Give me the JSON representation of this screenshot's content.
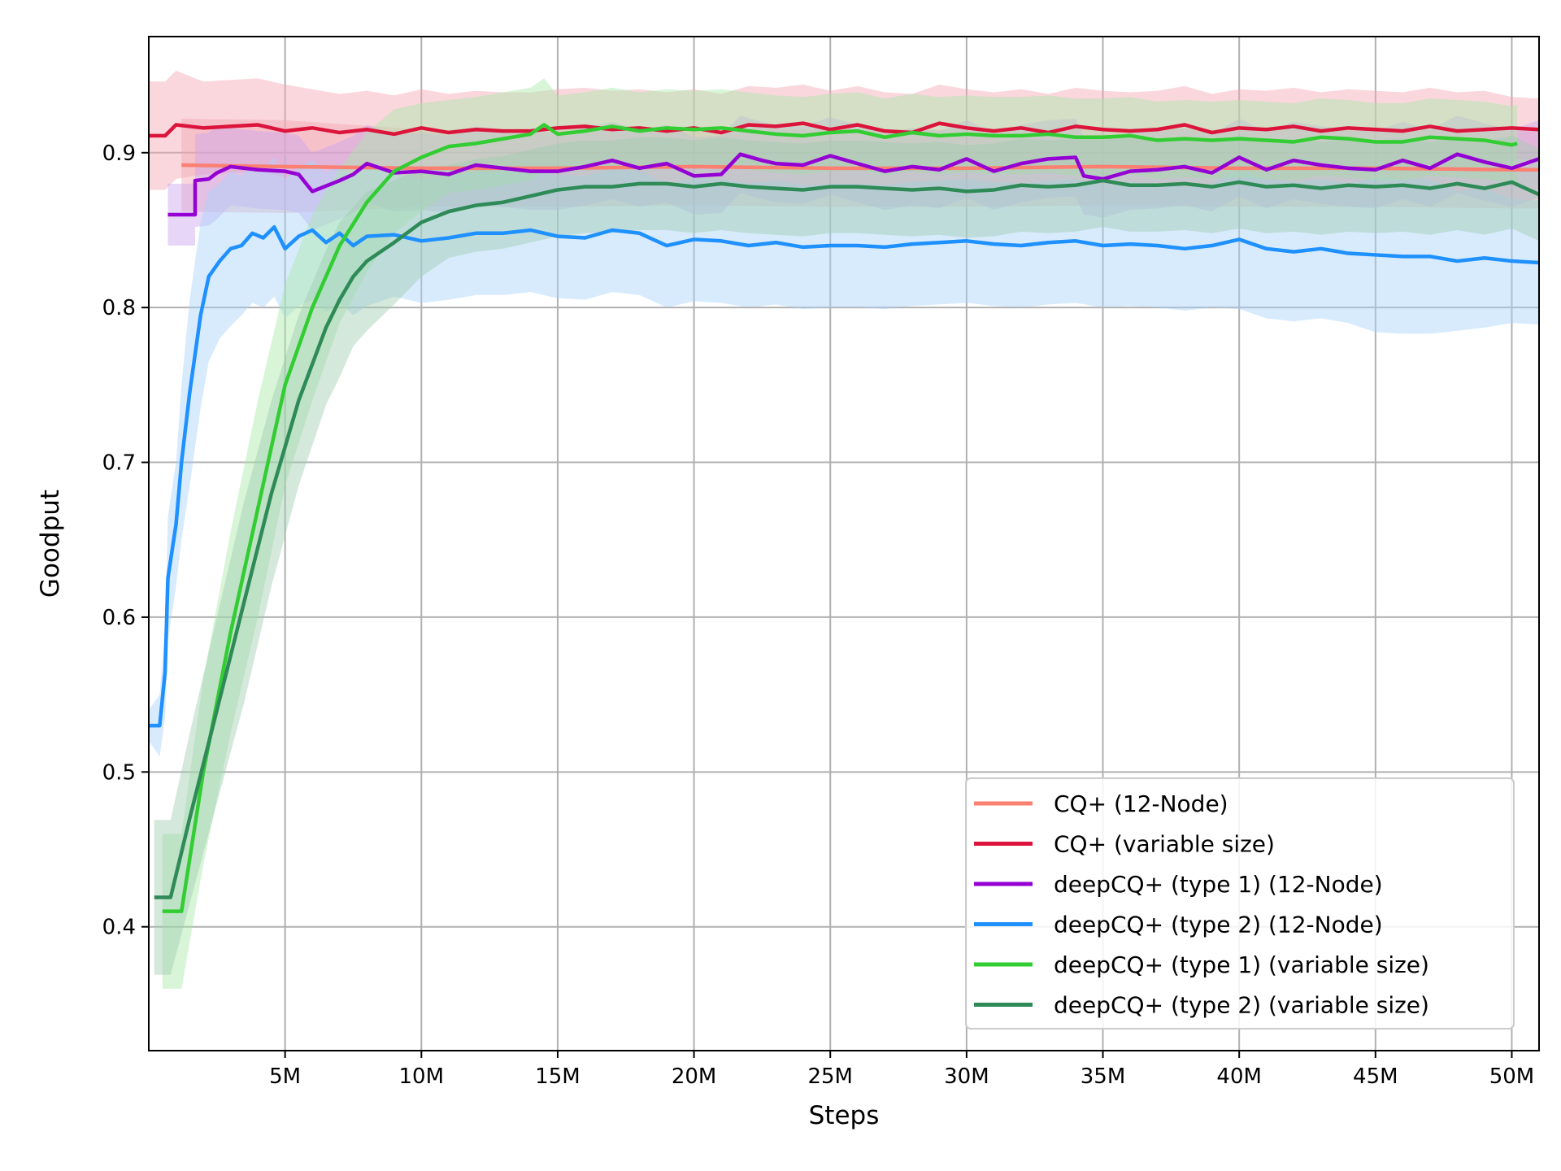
{
  "chart_data": {
    "type": "line",
    "xlabel": "Steps",
    "ylabel": "Goodput",
    "xlim": [
      0,
      51000000
    ],
    "ylim": [
      0.32,
      0.975
    ],
    "x_ticks": [
      5000000,
      10000000,
      15000000,
      20000000,
      25000000,
      30000000,
      35000000,
      40000000,
      45000000,
      50000000
    ],
    "x_tick_labels": [
      "5M",
      "10M",
      "15M",
      "20M",
      "25M",
      "30M",
      "35M",
      "40M",
      "45M",
      "50M"
    ],
    "y_ticks": [
      0.4,
      0.5,
      0.6,
      0.7,
      0.8,
      0.9
    ],
    "y_tick_labels": [
      "0.4",
      "0.5",
      "0.6",
      "0.7",
      "0.8",
      "0.9"
    ],
    "grid": true,
    "legend_position": "lower right",
    "series": [
      {
        "name": "CQ+ (12-Node)",
        "color": "#fa8072",
        "band_color": "#f4a6b4",
        "x": [
          1200000,
          5000000,
          10000000,
          15000000,
          20000000,
          25000000,
          30000000,
          35000000,
          40000000,
          45000000,
          50000000,
          51000000
        ],
        "y": [
          0.892,
          0.891,
          0.89,
          0.89,
          0.891,
          0.89,
          0.89,
          0.891,
          0.89,
          0.89,
          0.889,
          0.889
        ],
        "band": [
          0.03,
          0.03,
          0.025,
          0.025,
          0.025,
          0.025,
          0.025,
          0.025,
          0.025,
          0.025,
          0.025,
          0.025
        ]
      },
      {
        "name": "CQ+ (variable size)",
        "color": "#dc143c",
        "band_color": "#f4a6b4",
        "x": [
          0,
          600000,
          1000000,
          2000000,
          3000000,
          4000000,
          5000000,
          6000000,
          7000000,
          8000000,
          9000000,
          10000000,
          11000000,
          12000000,
          13000000,
          14000000,
          15000000,
          16000000,
          17000000,
          18000000,
          19000000,
          20000000,
          21000000,
          22000000,
          23000000,
          24000000,
          25000000,
          26000000,
          27000000,
          28000000,
          29000000,
          30000000,
          31000000,
          32000000,
          33000000,
          34000000,
          35000000,
          36000000,
          37000000,
          38000000,
          39000000,
          40000000,
          41000000,
          42000000,
          43000000,
          44000000,
          45000000,
          46000000,
          47000000,
          48000000,
          49000000,
          50000000,
          51000000
        ],
        "y": [
          0.911,
          0.911,
          0.918,
          0.916,
          0.917,
          0.918,
          0.914,
          0.916,
          0.913,
          0.915,
          0.912,
          0.916,
          0.913,
          0.915,
          0.914,
          0.914,
          0.916,
          0.917,
          0.915,
          0.916,
          0.914,
          0.916,
          0.913,
          0.918,
          0.917,
          0.919,
          0.915,
          0.918,
          0.914,
          0.913,
          0.919,
          0.916,
          0.914,
          0.916,
          0.913,
          0.917,
          0.915,
          0.914,
          0.915,
          0.918,
          0.913,
          0.916,
          0.915,
          0.917,
          0.914,
          0.916,
          0.915,
          0.914,
          0.917,
          0.914,
          0.915,
          0.916,
          0.915
        ],
        "band": [
          0.035,
          0.035,
          0.035,
          0.03,
          0.03,
          0.03,
          0.03,
          0.025,
          0.025,
          0.025,
          0.025,
          0.025,
          0.025,
          0.025,
          0.025,
          0.025,
          0.025,
          0.025,
          0.025,
          0.025,
          0.025,
          0.025,
          0.025,
          0.025,
          0.025,
          0.025,
          0.025,
          0.025,
          0.025,
          0.025,
          0.025,
          0.025,
          0.025,
          0.025,
          0.025,
          0.025,
          0.025,
          0.025,
          0.025,
          0.025,
          0.025,
          0.025,
          0.025,
          0.025,
          0.025,
          0.025,
          0.025,
          0.025,
          0.025,
          0.025,
          0.025,
          0.02,
          0.02
        ]
      },
      {
        "name": "deepCQ+ (type 1) (12-Node)",
        "color": "#9400d3",
        "band_color": "#c9a3ee",
        "x": [
          700000,
          1700000,
          1700000,
          2200000,
          2500000,
          3000000,
          4000000,
          5000000,
          5500000,
          6000000,
          7000000,
          7500000,
          8000000,
          9000000,
          10000000,
          11000000,
          12000000,
          13000000,
          14000000,
          15000000,
          16000000,
          17000000,
          18000000,
          19000000,
          20000000,
          21000000,
          21700000,
          22500000,
          23000000,
          24000000,
          25000000,
          26000000,
          27000000,
          28000000,
          29000000,
          30000000,
          31000000,
          32000000,
          33000000,
          34000000,
          34300000,
          35000000,
          36000000,
          37000000,
          38000000,
          39000000,
          40000000,
          41000000,
          42000000,
          43000000,
          44000000,
          45000000,
          46000000,
          47000000,
          48000000,
          49000000,
          50000000,
          51000000
        ],
        "y": [
          0.86,
          0.86,
          0.882,
          0.883,
          0.887,
          0.891,
          0.889,
          0.888,
          0.886,
          0.875,
          0.882,
          0.886,
          0.893,
          0.887,
          0.888,
          0.886,
          0.892,
          0.89,
          0.888,
          0.888,
          0.891,
          0.895,
          0.89,
          0.893,
          0.885,
          0.886,
          0.899,
          0.895,
          0.893,
          0.892,
          0.898,
          0.893,
          0.888,
          0.891,
          0.889,
          0.896,
          0.888,
          0.893,
          0.896,
          0.897,
          0.885,
          0.883,
          0.888,
          0.889,
          0.891,
          0.887,
          0.897,
          0.889,
          0.895,
          0.892,
          0.89,
          0.889,
          0.895,
          0.89,
          0.899,
          0.894,
          0.89,
          0.896
        ],
        "band": [
          0.02,
          0.02,
          0.03,
          0.03,
          0.03,
          0.025,
          0.025,
          0.025,
          0.025,
          0.025,
          0.025,
          0.025,
          0.025,
          0.025,
          0.025,
          0.025,
          0.025,
          0.025,
          0.025,
          0.025,
          0.025,
          0.025,
          0.025,
          0.025,
          0.025,
          0.025,
          0.025,
          0.025,
          0.025,
          0.025,
          0.025,
          0.025,
          0.025,
          0.025,
          0.025,
          0.025,
          0.025,
          0.025,
          0.025,
          0.025,
          0.025,
          0.025,
          0.025,
          0.025,
          0.025,
          0.025,
          0.025,
          0.025,
          0.025,
          0.025,
          0.025,
          0.025,
          0.025,
          0.025,
          0.025,
          0.025,
          0.025,
          0.025
        ]
      },
      {
        "name": "deepCQ+ (type 2) (12-Node)",
        "color": "#1e90ff",
        "band_color": "#a9d3fb",
        "x": [
          0,
          400000,
          600000,
          700000,
          1000000,
          1200000,
          1500000,
          1900000,
          2200000,
          2600000,
          3000000,
          3400000,
          3800000,
          4200000,
          4600000,
          5000000,
          5500000,
          6000000,
          6500000,
          7000000,
          7500000,
          8000000,
          9000000,
          10000000,
          11000000,
          12000000,
          13000000,
          14000000,
          15000000,
          16000000,
          17000000,
          18000000,
          19000000,
          20000000,
          21000000,
          22000000,
          23000000,
          24000000,
          25000000,
          26000000,
          27000000,
          28000000,
          29000000,
          30000000,
          31000000,
          32000000,
          33000000,
          34000000,
          35000000,
          36000000,
          37000000,
          38000000,
          39000000,
          40000000,
          41000000,
          42000000,
          43000000,
          44000000,
          45000000,
          46000000,
          47000000,
          48000000,
          49000000,
          50000000,
          51000000
        ],
        "y": [
          0.53,
          0.53,
          0.565,
          0.625,
          0.66,
          0.7,
          0.745,
          0.795,
          0.82,
          0.83,
          0.838,
          0.84,
          0.848,
          0.845,
          0.852,
          0.838,
          0.846,
          0.85,
          0.842,
          0.848,
          0.84,
          0.846,
          0.847,
          0.843,
          0.845,
          0.848,
          0.848,
          0.85,
          0.846,
          0.845,
          0.85,
          0.848,
          0.84,
          0.844,
          0.843,
          0.84,
          0.842,
          0.839,
          0.84,
          0.84,
          0.839,
          0.841,
          0.842,
          0.843,
          0.841,
          0.84,
          0.842,
          0.843,
          0.84,
          0.841,
          0.84,
          0.838,
          0.84,
          0.844,
          0.838,
          0.836,
          0.838,
          0.835,
          0.834,
          0.833,
          0.833,
          0.83,
          0.832,
          0.83,
          0.829
        ],
        "band": [
          0.01,
          0.02,
          0.03,
          0.04,
          0.04,
          0.05,
          0.06,
          0.06,
          0.055,
          0.05,
          0.05,
          0.045,
          0.045,
          0.045,
          0.045,
          0.045,
          0.045,
          0.045,
          0.045,
          0.045,
          0.045,
          0.045,
          0.04,
          0.04,
          0.04,
          0.04,
          0.04,
          0.04,
          0.04,
          0.04,
          0.04,
          0.04,
          0.04,
          0.04,
          0.04,
          0.04,
          0.04,
          0.04,
          0.04,
          0.04,
          0.04,
          0.04,
          0.04,
          0.04,
          0.04,
          0.04,
          0.04,
          0.04,
          0.04,
          0.04,
          0.04,
          0.04,
          0.04,
          0.045,
          0.045,
          0.045,
          0.045,
          0.045,
          0.05,
          0.05,
          0.05,
          0.045,
          0.045,
          0.04,
          0.04
        ]
      },
      {
        "name": "deepCQ+ (type 1) (variable size)",
        "color": "#32cd32",
        "band_color": "#a8e9a8",
        "x": [
          500000,
          1200000,
          2000000,
          3000000,
          4000000,
          5000000,
          6000000,
          7000000,
          8000000,
          9000000,
          10000000,
          11000000,
          12000000,
          13000000,
          14000000,
          14500000,
          15000000,
          16000000,
          17000000,
          18000000,
          19000000,
          20000000,
          21000000,
          22000000,
          23000000,
          24000000,
          25000000,
          26000000,
          27000000,
          28000000,
          29000000,
          30000000,
          31000000,
          32000000,
          33000000,
          34000000,
          35000000,
          36000000,
          37000000,
          38000000,
          39000000,
          40000000,
          41000000,
          42000000,
          43000000,
          44000000,
          45000000,
          46000000,
          47000000,
          48000000,
          49000000,
          50000000,
          50200000
        ],
        "y": [
          0.41,
          0.41,
          0.5,
          0.59,
          0.67,
          0.75,
          0.8,
          0.84,
          0.868,
          0.888,
          0.897,
          0.904,
          0.906,
          0.909,
          0.912,
          0.918,
          0.912,
          0.914,
          0.917,
          0.914,
          0.916,
          0.915,
          0.916,
          0.914,
          0.912,
          0.911,
          0.913,
          0.914,
          0.91,
          0.913,
          0.911,
          0.912,
          0.911,
          0.911,
          0.912,
          0.91,
          0.91,
          0.911,
          0.908,
          0.909,
          0.908,
          0.909,
          0.908,
          0.907,
          0.91,
          0.909,
          0.907,
          0.907,
          0.91,
          0.909,
          0.908,
          0.905,
          0.906
        ],
        "band": [
          0.05,
          0.05,
          0.06,
          0.065,
          0.07,
          0.065,
          0.06,
          0.05,
          0.045,
          0.04,
          0.035,
          0.03,
          0.03,
          0.03,
          0.03,
          0.03,
          0.025,
          0.025,
          0.025,
          0.025,
          0.025,
          0.025,
          0.025,
          0.025,
          0.025,
          0.025,
          0.025,
          0.025,
          0.025,
          0.025,
          0.025,
          0.025,
          0.025,
          0.025,
          0.025,
          0.025,
          0.025,
          0.025,
          0.025,
          0.025,
          0.025,
          0.025,
          0.025,
          0.025,
          0.025,
          0.025,
          0.025,
          0.025,
          0.025,
          0.025,
          0.025,
          0.025,
          0.025
        ]
      },
      {
        "name": "deepCQ+ (type 2) (variable size)",
        "color": "#2e8b57",
        "band_color": "#9fcdb0",
        "x": [
          200000,
          800000,
          1500000,
          2500000,
          3500000,
          4500000,
          5500000,
          6500000,
          7000000,
          7500000,
          8000000,
          9000000,
          10000000,
          11000000,
          12000000,
          13000000,
          14000000,
          15000000,
          16000000,
          17000000,
          18000000,
          19000000,
          20000000,
          21000000,
          22000000,
          23000000,
          24000000,
          25000000,
          26000000,
          27000000,
          28000000,
          29000000,
          30000000,
          31000000,
          32000000,
          33000000,
          34000000,
          35000000,
          36000000,
          37000000,
          38000000,
          39000000,
          40000000,
          41000000,
          42000000,
          43000000,
          44000000,
          45000000,
          46000000,
          47000000,
          48000000,
          49000000,
          50000000,
          51000000
        ],
        "y": [
          0.419,
          0.419,
          0.47,
          0.54,
          0.61,
          0.68,
          0.74,
          0.787,
          0.805,
          0.82,
          0.83,
          0.842,
          0.855,
          0.862,
          0.866,
          0.868,
          0.872,
          0.876,
          0.878,
          0.878,
          0.88,
          0.88,
          0.878,
          0.88,
          0.878,
          0.877,
          0.876,
          0.878,
          0.878,
          0.877,
          0.876,
          0.877,
          0.875,
          0.876,
          0.879,
          0.878,
          0.879,
          0.882,
          0.879,
          0.879,
          0.88,
          0.878,
          0.881,
          0.878,
          0.879,
          0.877,
          0.879,
          0.878,
          0.879,
          0.877,
          0.88,
          0.877,
          0.881,
          0.873
        ],
        "band": [
          0.05,
          0.05,
          0.055,
          0.06,
          0.065,
          0.06,
          0.055,
          0.05,
          0.05,
          0.045,
          0.045,
          0.04,
          0.035,
          0.03,
          0.03,
          0.03,
          0.03,
          0.03,
          0.03,
          0.03,
          0.03,
          0.03,
          0.03,
          0.03,
          0.03,
          0.03,
          0.03,
          0.03,
          0.03,
          0.03,
          0.03,
          0.03,
          0.03,
          0.03,
          0.03,
          0.03,
          0.03,
          0.03,
          0.03,
          0.03,
          0.03,
          0.03,
          0.03,
          0.03,
          0.03,
          0.03,
          0.03,
          0.03,
          0.03,
          0.03,
          0.03,
          0.03,
          0.03,
          0.03
        ]
      }
    ]
  }
}
